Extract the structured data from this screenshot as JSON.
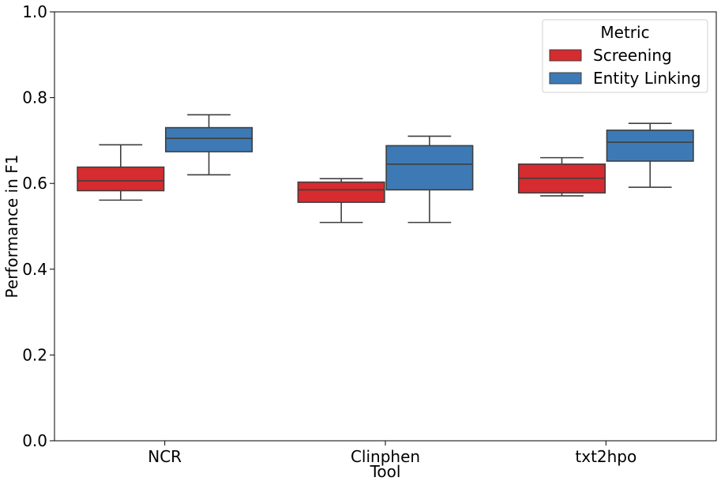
{
  "chart_data": {
    "type": "box",
    "title": "",
    "xlabel": "Tool",
    "ylabel": "Performance in F1",
    "ylim": [
      0,
      1.0
    ],
    "yticks": [
      "0.0",
      "0.2",
      "0.4",
      "0.6",
      "0.8",
      "1.0"
    ],
    "categories": [
      "NCR",
      "Clinphen",
      "txt2hpo"
    ],
    "grid": false,
    "legend": {
      "title": "Metric",
      "placement": "top-right"
    },
    "series": [
      {
        "name": "Screening",
        "color": "#d62b2f",
        "boxes": [
          {
            "min": 0.561,
            "q1": 0.583,
            "median": 0.606,
            "q3": 0.638,
            "max": 0.69
          },
          {
            "min": 0.509,
            "q1": 0.556,
            "median": 0.585,
            "q3": 0.603,
            "max": 0.611
          },
          {
            "min": 0.571,
            "q1": 0.578,
            "median": 0.612,
            "q3": 0.645,
            "max": 0.66
          }
        ]
      },
      {
        "name": "Entity Linking",
        "color": "#3d7ab5",
        "boxes": [
          {
            "min": 0.62,
            "q1": 0.674,
            "median": 0.705,
            "q3": 0.73,
            "max": 0.76
          },
          {
            "min": 0.509,
            "q1": 0.585,
            "median": 0.645,
            "q3": 0.688,
            "max": 0.71
          },
          {
            "min": 0.591,
            "q1": 0.652,
            "median": 0.696,
            "q3": 0.724,
            "max": 0.74
          }
        ]
      }
    ]
  }
}
